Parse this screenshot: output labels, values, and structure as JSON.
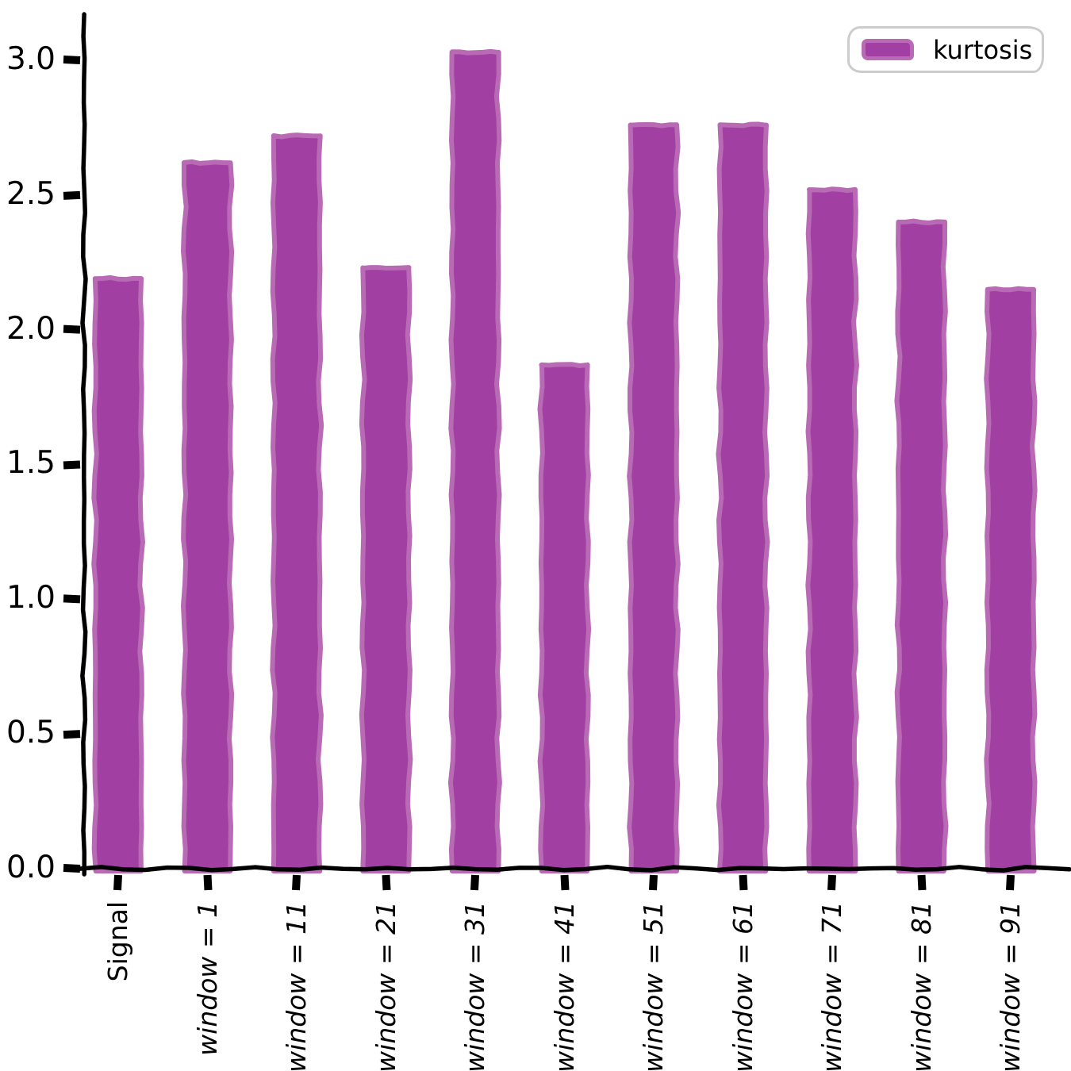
{
  "figure": {
    "background": "#ffffff"
  },
  "legend": {
    "label": "kurtosis",
    "border_color": "#cccccc"
  },
  "chart_data": {
    "type": "bar",
    "title": "",
    "xlabel": "",
    "ylabel": "",
    "style": "xkcd",
    "grid": false,
    "categories": [
      "Signal",
      "window = 1",
      "window = 11",
      "window = 21",
      "window = 31",
      "window = 41",
      "window = 51",
      "window = 61",
      "window = 71",
      "window = 81",
      "window = 91"
    ],
    "tick_label_styles": [
      "upright",
      "italic",
      "italic",
      "italic",
      "italic",
      "italic",
      "italic",
      "italic",
      "italic",
      "italic",
      "italic"
    ],
    "series": [
      {
        "name": "kurtosis",
        "values": [
          2.19,
          2.62,
          2.72,
          2.23,
          3.03,
          1.87,
          2.76,
          2.76,
          2.52,
          2.4,
          2.15
        ]
      }
    ],
    "ylim": [
      0,
      3.2
    ],
    "yticks": [
      0.0,
      0.5,
      1.0,
      1.5,
      2.0,
      2.5,
      3.0
    ],
    "ytick_labels": [
      "0.0",
      "0.5",
      "1.0",
      "1.5",
      "2.0",
      "2.5",
      "3.0"
    ],
    "bar_color": "#A23FA2",
    "bar_edge_color": "#B96AB5",
    "axis_color": "#000000",
    "legend": {
      "label": "kurtosis",
      "position": "upper right"
    }
  }
}
